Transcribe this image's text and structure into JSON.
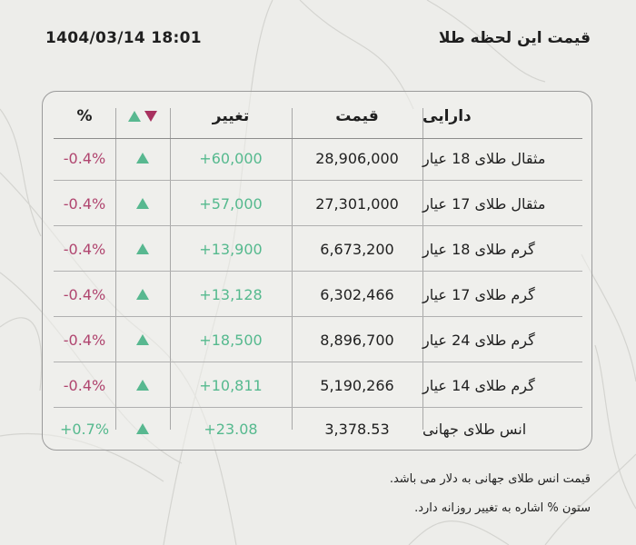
{
  "header": {
    "title": "قیمت این لحظه طلا",
    "datetime": "1404/03/14 18:01"
  },
  "table": {
    "columns": {
      "asset": "دارایی",
      "price": "قیمت",
      "change": "تغییر",
      "percent": "%"
    },
    "rows": [
      {
        "asset": "مثقال طلای 18 عیار",
        "price": "28,906,000",
        "change": "+60,000",
        "percent": "-0.4%",
        "direction": "up"
      },
      {
        "asset": "مثقال طلای 17 عیار",
        "price": "27,301,000",
        "change": "+57,000",
        "percent": "-0.4%",
        "direction": "up"
      },
      {
        "asset": "گرم طلای 18 عیار",
        "price": "6,673,200",
        "change": "+13,900",
        "percent": "-0.4%",
        "direction": "up"
      },
      {
        "asset": "گرم طلای 17 عیار",
        "price": "6,302,466",
        "change": "+13,128",
        "percent": "-0.4%",
        "direction": "up"
      },
      {
        "asset": "گرم طلای 24 عیار",
        "price": "8,896,700",
        "change": "+18,500",
        "percent": "-0.4%",
        "direction": "up"
      },
      {
        "asset": "گرم طلای 14 عیار",
        "price": "5,190,266",
        "change": "+10,811",
        "percent": "-0.4%",
        "direction": "up"
      },
      {
        "asset": "انس طلای جهانی",
        "price": "3,378.53",
        "change": "+23.08",
        "percent": "+0.7%",
        "direction": "up"
      }
    ]
  },
  "notes": {
    "line1": "قیمت انس طلای جهانی به دلار می باشد.",
    "line2": "ستون % اشاره به تغییر روزانه دارد."
  },
  "colors": {
    "negative": "#b0456f",
    "positive": "#55b98e",
    "up_arrow": "#58b890",
    "down_arrow": "#a8315f"
  }
}
